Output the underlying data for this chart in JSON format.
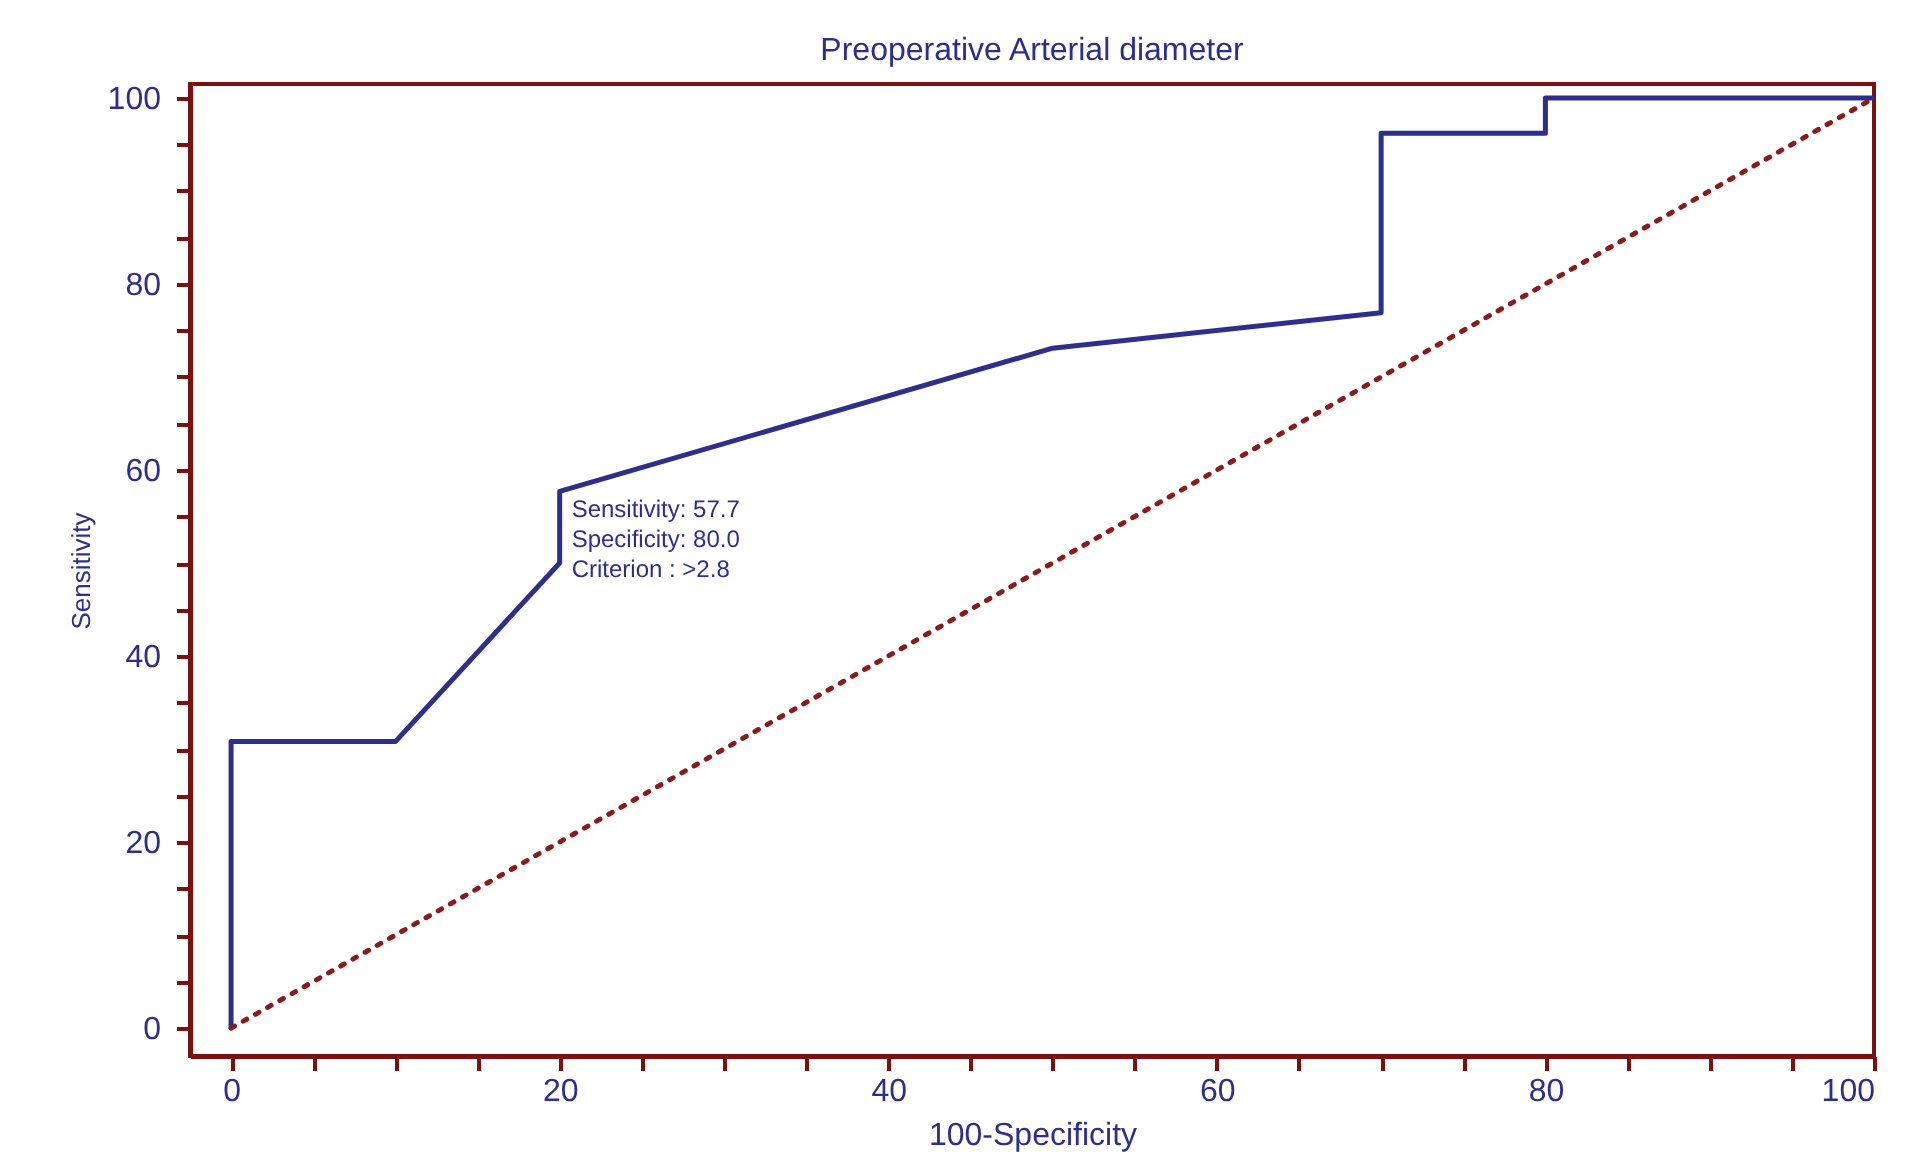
{
  "chart_data": {
    "type": "line",
    "title": "Preoperative Arterial diameter",
    "xlabel": "100-Specificity",
    "ylabel": "Sensitivity",
    "series": [
      {
        "color": "#2e2e8f",
        "line_style": "solid",
        "x": [
          0,
          0,
          10,
          20,
          20,
          50,
          70,
          70,
          80,
          80,
          100
        ],
        "values": [
          0,
          30.8,
          30.8,
          50,
          57.7,
          73.1,
          76.9,
          96.2,
          96.2,
          100,
          100
        ]
      },
      {
        "color": "#8b1a1a",
        "line_style": "dotted",
        "x": [
          0,
          100
        ],
        "values": [
          0,
          100
        ]
      }
    ],
    "annotations": [
      {
        "text": "Sensitivity: 57.7\nSpecificity: 80.0\nCriterion : >2.8",
        "x": 20,
        "y": 57.7
      }
    ],
    "xlim": [
      -2.5,
      100
    ],
    "ylim": [
      -3,
      101.5
    ],
    "xticks": [
      0,
      {
        "value": 5,
        "label": null
      },
      {
        "value": 10,
        "label": null
      },
      {
        "value": 15,
        "label": null
      },
      20,
      {
        "value": 25,
        "label": null
      },
      {
        "value": 30,
        "label": null
      },
      {
        "value": 35,
        "label": null
      },
      40,
      {
        "value": 45,
        "label": null
      },
      {
        "value": 50,
        "label": null
      },
      {
        "value": 55,
        "label": null
      },
      60,
      {
        "value": 65,
        "label": null
      },
      {
        "value": 70,
        "label": null
      },
      {
        "value": 75,
        "label": null
      },
      80,
      {
        "value": 85,
        "label": null
      },
      {
        "value": 90,
        "label": null
      },
      {
        "value": 95,
        "label": null
      },
      100
    ],
    "yticks": [
      0,
      {
        "value": 5,
        "label": null
      },
      {
        "value": 10,
        "label": null
      },
      {
        "value": 15,
        "label": null
      },
      20,
      {
        "value": 25,
        "label": null
      },
      {
        "value": 30,
        "label": null
      },
      {
        "value": 35,
        "label": null
      },
      40,
      {
        "value": 45,
        "label": null
      },
      {
        "value": 50,
        "label": null
      },
      {
        "value": 55,
        "label": null
      },
      60,
      {
        "value": 65,
        "label": null
      },
      {
        "value": 70,
        "label": null
      },
      {
        "value": 75,
        "label": null
      },
      80,
      {
        "value": 85,
        "label": null
      },
      {
        "value": 90,
        "label": null
      },
      {
        "value": 95,
        "label": null
      },
      100
    ],
    "grid": false
  }
}
